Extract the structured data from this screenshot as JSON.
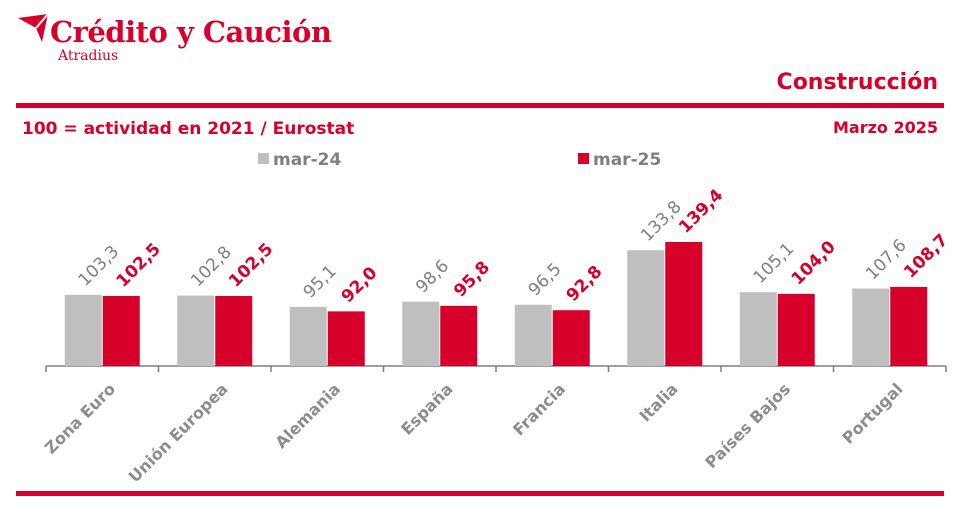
{
  "brand": {
    "name": "Crédito y Caución",
    "subtitle": "Atradius",
    "color": "#d7002a"
  },
  "header": {
    "section_title": "Construcción",
    "subtitle": "100 = actividad en 2021 / Eurostat",
    "date": "Marzo 2025"
  },
  "chart_data": {
    "type": "bar",
    "categories": [
      "Zona Euro",
      "Unión Europea",
      "Alemania",
      "España",
      "Francia",
      "Italia",
      "Países Bajos",
      "Portugal"
    ],
    "series": [
      {
        "name": "mar-24",
        "color": "#bfbfbf",
        "label_color": "#7f7f7f",
        "values": [
          103.3,
          102.8,
          95.1,
          98.6,
          96.5,
          133.8,
          105.1,
          107.6
        ],
        "labels": [
          "103,3",
          "102,8",
          "95,1",
          "98,6",
          "96,5",
          "133,8",
          "105,1",
          "107,6"
        ]
      },
      {
        "name": "mar-25",
        "color": "#d7002a",
        "label_color": "#d7002a",
        "values": [
          102.5,
          102.5,
          92.0,
          95.8,
          92.8,
          139.4,
          104.0,
          108.7
        ],
        "labels": [
          "102,5",
          "102,5",
          "92,0",
          "95,8",
          "92,8",
          "139,4",
          "104,0",
          "108,7"
        ]
      }
    ],
    "legend_position": "top-center",
    "grid": false,
    "ylim": [
      0,
      140
    ]
  }
}
